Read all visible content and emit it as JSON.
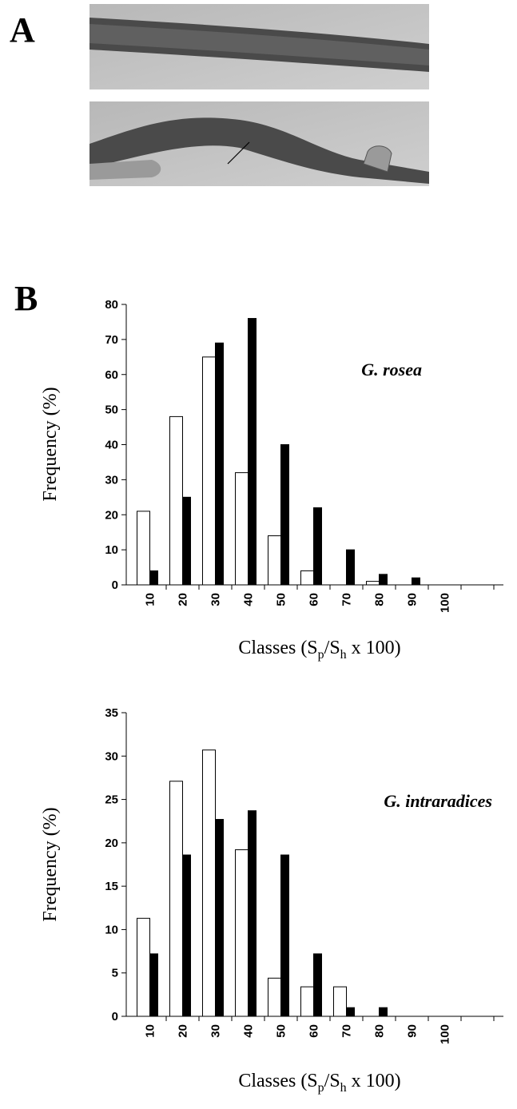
{
  "panel_labels": [
    "A",
    "B"
  ],
  "chart_data": [
    {
      "type": "bar",
      "annotation": "G. rosea",
      "ylabel": "Frequency (%)",
      "xlabel": [
        "Classes (S",
        "p",
        "/S",
        "h",
        " x 100)"
      ],
      "categories": [
        "10",
        "20",
        "30",
        "40",
        "50",
        "60",
        "70",
        "80",
        "90",
        "100",
        null
      ],
      "series": [
        {
          "color": "#ffffff",
          "values": [
            21,
            48,
            65,
            32,
            14,
            4,
            0,
            1,
            0,
            0,
            null
          ]
        },
        {
          "color": "#000000",
          "values": [
            4,
            25,
            69,
            76,
            40,
            22,
            10,
            3,
            2,
            0,
            null
          ]
        }
      ],
      "ylim": [
        0,
        80
      ],
      "yticks": [
        0,
        10,
        20,
        30,
        40,
        50,
        60,
        70,
        80
      ]
    },
    {
      "type": "bar",
      "annotation": "G. intraradices",
      "ylabel": "Frequency (%)",
      "xlabel": [
        "Classes (S",
        "p",
        "/S",
        "h",
        " x 100)"
      ],
      "categories": [
        "10",
        "20",
        "30",
        "40",
        "50",
        "60",
        "70",
        "80",
        "90",
        "100",
        null
      ],
      "series": [
        {
          "color": "#ffffff",
          "values": [
            11.3,
            27.1,
            30.7,
            19.2,
            4.4,
            3.4,
            3.4,
            0,
            0,
            0,
            null
          ]
        },
        {
          "color": "#000000",
          "values": [
            7.2,
            18.6,
            22.7,
            23.7,
            18.6,
            7.2,
            1,
            1,
            0,
            0,
            null
          ]
        }
      ],
      "ylim": [
        0,
        35
      ],
      "yticks": [
        0,
        5,
        10,
        15,
        20,
        25,
        30,
        35
      ]
    }
  ]
}
